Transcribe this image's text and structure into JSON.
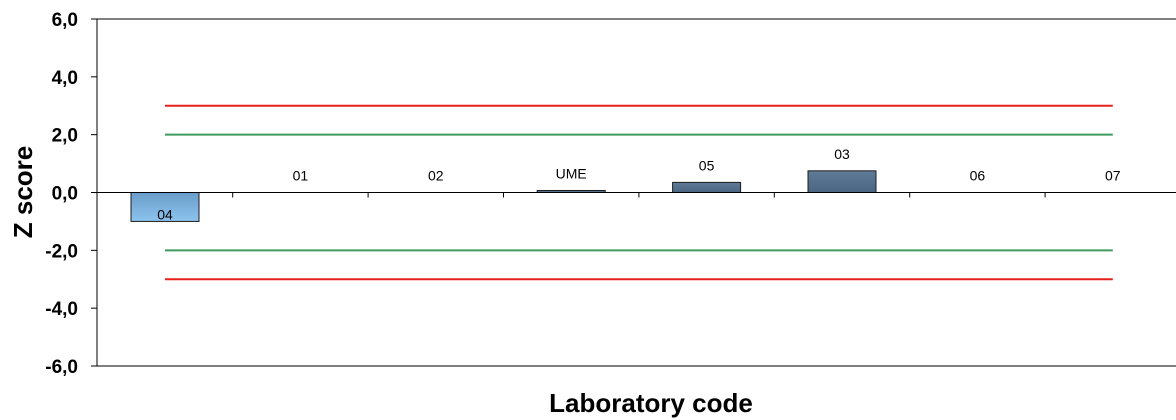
{
  "chart_data": {
    "type": "bar",
    "title": "",
    "xlabel": "Laboratory code",
    "ylabel": "Z score",
    "ylim": [
      -6,
      6
    ],
    "yticks": [
      6,
      4,
      2,
      0,
      -2,
      -4,
      -6
    ],
    "ytick_labels": [
      "6,0",
      "4,0",
      "2,0",
      "0,0",
      "-2,0",
      "-4,0",
      "-6,0"
    ],
    "categories": [
      "04",
      "01",
      "02",
      "UME",
      "05",
      "03",
      "06",
      "07"
    ],
    "values": [
      -1.0,
      0.0,
      0.0,
      0.07,
      0.35,
      0.75,
      0.0,
      0.0
    ],
    "reference_lines": [
      {
        "value": 3,
        "color": "#e8201c"
      },
      {
        "value": 2,
        "color": "#3f9b5f"
      },
      {
        "value": -2,
        "color": "#3f9b5f"
      },
      {
        "value": -3,
        "color": "#e8201c"
      }
    ],
    "bar_colors": {
      "positive": "#4a6582",
      "negative": "#8cc4ee"
    },
    "grid": false,
    "legend": "none"
  }
}
